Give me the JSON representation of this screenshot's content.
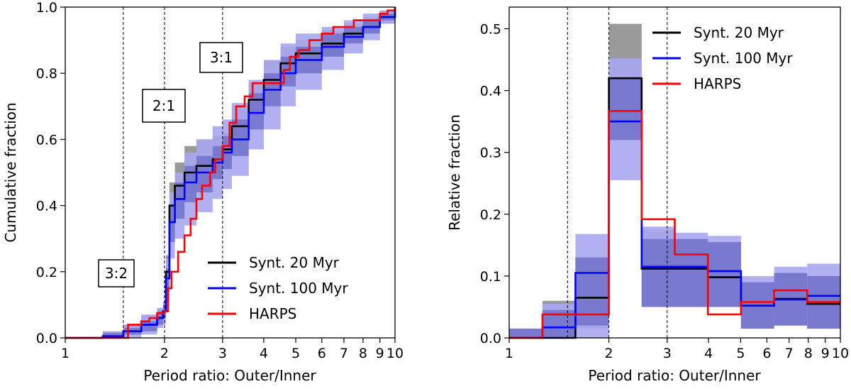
{
  "chart_data": [
    {
      "type": "line",
      "panel": "left",
      "xscale": "log",
      "xlim": [
        1,
        10
      ],
      "ylim": [
        0,
        1
      ],
      "xlabel": "Period ratio: Outer/Inner",
      "ylabel": "Cumulative fraction",
      "xticks": [
        "1",
        "2",
        "3",
        "4",
        "5",
        "6",
        "7",
        "8",
        "9",
        "10"
      ],
      "yticks": [
        "0.0",
        "0.2",
        "0.4",
        "0.6",
        "0.8",
        "1.0"
      ],
      "vlines": [
        1.5,
        2,
        3
      ],
      "annotations": [
        {
          "text": "3:2",
          "x": 1.5,
          "y": 0.2
        },
        {
          "text": "2:1",
          "x": 2.0,
          "y": 0.69
        },
        {
          "text": "3:1",
          "x": 3.0,
          "y": 0.84
        }
      ],
      "legend": [
        "Synt. 20 Myr",
        "Synt. 100 Myr",
        "HARPS"
      ],
      "legend_position": "lower-right",
      "colors": {
        "synt20": "#000000",
        "synt100": "#0000ff",
        "harps": "#ff0000",
        "band20": "#9a9a9a",
        "band100_outer": "#a7a7f2",
        "band100_inner": "#7474cc"
      },
      "series": [
        {
          "name": "Synt. 20 Myr",
          "x": [
            1.0,
            1.3,
            1.5,
            1.7,
            1.9,
            1.98,
            2.02,
            2.07,
            2.15,
            2.3,
            2.5,
            2.8,
            3.0,
            3.2,
            3.6,
            4.0,
            4.5,
            5.0,
            6.0,
            7.0,
            8.0,
            9.0,
            10.0
          ],
          "y": [
            0.0,
            0.005,
            0.02,
            0.04,
            0.06,
            0.08,
            0.2,
            0.4,
            0.46,
            0.5,
            0.52,
            0.54,
            0.57,
            0.64,
            0.72,
            0.78,
            0.83,
            0.86,
            0.89,
            0.92,
            0.94,
            0.97,
            1.0
          ]
        },
        {
          "name": "Synt. 100 Myr",
          "x": [
            1.0,
            1.3,
            1.5,
            1.7,
            1.9,
            1.98,
            2.02,
            2.07,
            2.15,
            2.3,
            2.5,
            2.8,
            3.0,
            3.2,
            3.6,
            4.0,
            4.5,
            5.0,
            6.0,
            7.0,
            8.0,
            9.0,
            10.0
          ],
          "y": [
            0.0,
            0.005,
            0.02,
            0.04,
            0.06,
            0.08,
            0.18,
            0.35,
            0.42,
            0.47,
            0.5,
            0.53,
            0.56,
            0.6,
            0.68,
            0.75,
            0.8,
            0.84,
            0.88,
            0.91,
            0.94,
            0.97,
            1.0
          ]
        },
        {
          "name": "HARPS",
          "x": [
            1.0,
            1.25,
            1.5,
            1.55,
            1.7,
            1.8,
            1.9,
            2.0,
            2.05,
            2.1,
            2.2,
            2.3,
            2.4,
            2.5,
            2.6,
            2.75,
            2.85,
            3.0,
            3.15,
            3.3,
            3.5,
            3.7,
            4.0,
            4.2,
            4.6,
            4.8,
            5.1,
            5.5,
            6.0,
            6.5,
            7.0,
            7.5,
            8.0,
            8.5,
            9.0,
            9.5,
            10.0
          ],
          "y": [
            0.0,
            0.0,
            0.0,
            0.04,
            0.05,
            0.06,
            0.075,
            0.08,
            0.15,
            0.2,
            0.26,
            0.31,
            0.36,
            0.42,
            0.46,
            0.5,
            0.54,
            0.58,
            0.65,
            0.7,
            0.73,
            0.77,
            0.77,
            0.77,
            0.81,
            0.85,
            0.87,
            0.9,
            0.92,
            0.94,
            0.94,
            0.96,
            0.96,
            0.96,
            0.98,
            0.99,
            1.0
          ]
        }
      ],
      "bands": {
        "x": [
          1.0,
          1.3,
          1.5,
          1.7,
          1.9,
          1.98,
          2.02,
          2.07,
          2.15,
          2.3,
          2.5,
          2.8,
          3.0,
          3.2,
          3.6,
          4.0,
          4.5,
          5.0,
          6.0,
          7.0,
          8.0,
          9.0,
          10.0
        ],
        "synt20_lo": [
          0.0,
          0.0,
          0.01,
          0.02,
          0.04,
          0.06,
          0.15,
          0.33,
          0.39,
          0.43,
          0.46,
          0.5,
          0.53,
          0.59,
          0.67,
          0.73,
          0.79,
          0.82,
          0.86,
          0.89,
          0.92,
          0.95,
          1.0
        ],
        "synt20_hi": [
          0.0,
          0.02,
          0.04,
          0.07,
          0.09,
          0.11,
          0.25,
          0.47,
          0.53,
          0.58,
          0.6,
          0.61,
          0.62,
          0.7,
          0.77,
          0.84,
          0.88,
          0.9,
          0.93,
          0.95,
          0.97,
          0.99,
          1.0
        ],
        "synt100_lo_outer": [
          0.0,
          0.0,
          0.0,
          0.01,
          0.03,
          0.04,
          0.11,
          0.24,
          0.3,
          0.34,
          0.38,
          0.42,
          0.45,
          0.49,
          0.57,
          0.63,
          0.7,
          0.75,
          0.81,
          0.86,
          0.9,
          0.95,
          1.0
        ],
        "synt100_hi_outer": [
          0.0,
          0.02,
          0.04,
          0.07,
          0.09,
          0.11,
          0.24,
          0.44,
          0.5,
          0.56,
          0.6,
          0.64,
          0.66,
          0.71,
          0.78,
          0.84,
          0.89,
          0.92,
          0.94,
          0.96,
          0.98,
          0.99,
          1.0
        ],
        "synt100_lo_inner": [
          0.0,
          0.0,
          0.01,
          0.02,
          0.04,
          0.06,
          0.14,
          0.29,
          0.36,
          0.41,
          0.44,
          0.48,
          0.51,
          0.55,
          0.63,
          0.7,
          0.76,
          0.8,
          0.85,
          0.89,
          0.92,
          0.96,
          1.0
        ],
        "synt100_hi_inner": [
          0.0,
          0.015,
          0.03,
          0.05,
          0.08,
          0.1,
          0.21,
          0.4,
          0.47,
          0.52,
          0.55,
          0.58,
          0.61,
          0.66,
          0.74,
          0.8,
          0.85,
          0.88,
          0.92,
          0.94,
          0.96,
          0.98,
          1.0
        ]
      }
    },
    {
      "type": "bar",
      "panel": "right",
      "xscale": "log",
      "xlim": [
        1,
        10
      ],
      "ylim": [
        0,
        0.535
      ],
      "xlabel": "Period ratio: Outer/Inner",
      "ylabel": "Relative fraction",
      "xticks": [
        "1",
        "2",
        "3",
        "4",
        "5",
        "6",
        "7",
        "8",
        "9",
        "10"
      ],
      "yticks": [
        "0.0",
        "0.1",
        "0.2",
        "0.3",
        "0.4",
        "0.5"
      ],
      "vlines": [
        1.5,
        2,
        3
      ],
      "legend": [
        "Synt. 20 Myr",
        "Synt. 100 Myr",
        "HARPS"
      ],
      "legend_position": "top-right",
      "bin_edges": [
        1.0,
        1.26,
        1.585,
        2.0,
        2.512,
        3.162,
        3.981,
        5.012,
        6.31,
        7.943,
        10.0
      ],
      "series": [
        {
          "name": "Synt. 20 Myr",
          "values": [
            0.0,
            0.0,
            0.065,
            0.42,
            0.112,
            0.112,
            0.098,
            0.052,
            0.063,
            0.055
          ]
        },
        {
          "name": "Synt. 100 Myr",
          "values": [
            0.0,
            0.017,
            0.105,
            0.35,
            0.115,
            0.115,
            0.108,
            0.052,
            0.062,
            0.068
          ]
        },
        {
          "name": "HARPS",
          "values": [
            0.0,
            0.038,
            0.038,
            0.367,
            0.192,
            0.135,
            0.038,
            0.058,
            0.077,
            0.058
          ]
        }
      ],
      "bands": {
        "synt20_lo": [
          0.0,
          0.0,
          0.015,
          0.33,
          0.05,
          0.05,
          0.05,
          0.015,
          0.02,
          0.015
        ],
        "synt20_hi": [
          0.015,
          0.06,
          0.13,
          0.508,
          0.175,
          0.16,
          0.155,
          0.09,
          0.105,
          0.1
        ],
        "synt100_lo_outer": [
          0.0,
          0.0,
          0.0,
          0.255,
          0.05,
          0.05,
          0.05,
          0.015,
          0.02,
          0.015
        ],
        "synt100_hi_outer": [
          0.015,
          0.055,
          0.168,
          0.452,
          0.18,
          0.17,
          0.165,
          0.1,
          0.115,
          0.12
        ],
        "synt100_lo_inner": [
          0.0,
          0.0,
          0.02,
          0.32,
          0.05,
          0.05,
          0.05,
          0.015,
          0.02,
          0.015
        ],
        "synt100_hi_inner": [
          0.015,
          0.045,
          0.13,
          0.42,
          0.16,
          0.16,
          0.155,
          0.09,
          0.105,
          0.1
        ]
      }
    }
  ]
}
